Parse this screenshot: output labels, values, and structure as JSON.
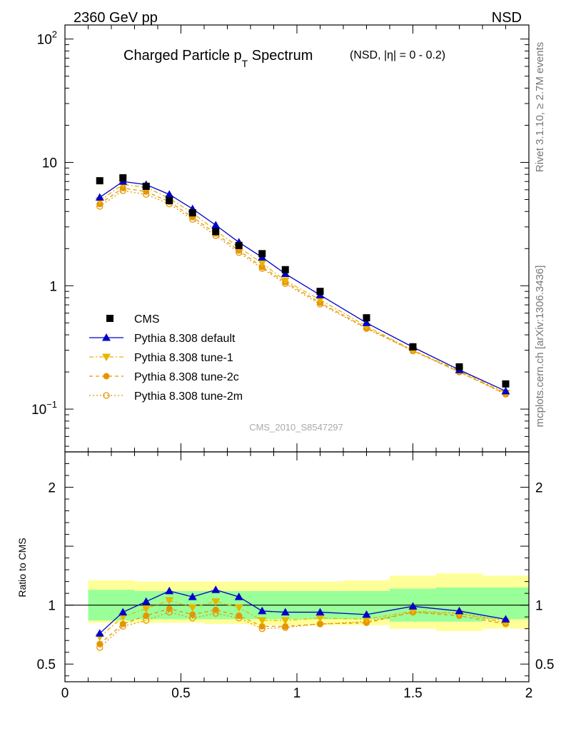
{
  "header": {
    "left": "2360 GeV pp",
    "right": "NSD",
    "side_rivet": "Rivet 3.1.10, ≥ 2.7M events",
    "side_mcplots": "mcplots.cern.ch [arXiv:1306.3436]"
  },
  "chart_data": {
    "type": "scatter",
    "title": "Charged Particle p",
    "title_sub": "T",
    "title_tail": " Spectrum",
    "title_cut": "(NSD, |η| =   0 - 0.2)",
    "watermark": "CMS_2010_S8547297",
    "top_panel": {
      "yscale": "log",
      "ylim": [
        0.045,
        130
      ],
      "ytick_labels": [
        {
          "value": 100,
          "base": "10",
          "exp": "2"
        },
        {
          "value": 10,
          "base": "10",
          "exp": ""
        },
        {
          "value": 1,
          "base": "1",
          "exp": ""
        },
        {
          "value": 0.1,
          "base": "10",
          "exp": "−1"
        }
      ]
    },
    "bottom_panel": {
      "ylabel": "Ratio to CMS",
      "ylim": [
        0.35,
        2.3
      ],
      "yticks": [
        0.5,
        1,
        2
      ],
      "ytick_labels": [
        "0.5",
        "1",
        "2"
      ],
      "reference_line": 1
    },
    "xlim": [
      0,
      2
    ],
    "xticks": [
      0,
      0.5,
      1,
      1.5,
      2
    ],
    "xtick_labels": [
      "0",
      "0.5",
      "1",
      "1.5",
      "2"
    ],
    "x": [
      0.15,
      0.25,
      0.35,
      0.45,
      0.55,
      0.65,
      0.75,
      0.85,
      0.95,
      1.1,
      1.3,
      1.5,
      1.7,
      1.9
    ],
    "x_edges": [
      0.1,
      0.2,
      0.3,
      0.4,
      0.5,
      0.6,
      0.7,
      0.8,
      0.9,
      1.0,
      1.2,
      1.4,
      1.6,
      1.8,
      2.0
    ],
    "data": {
      "name": "CMS",
      "values": [
        7.1,
        7.5,
        6.4,
        4.9,
        3.9,
        2.75,
        2.12,
        1.82,
        1.35,
        0.9,
        0.55,
        0.32,
        0.22,
        0.16
      ],
      "band_inner": [
        [
          0.87,
          1.13
        ],
        [
          0.87,
          1.13
        ],
        [
          0.88,
          1.12
        ],
        [
          0.88,
          1.12
        ],
        [
          0.88,
          1.12
        ],
        [
          0.88,
          1.12
        ],
        [
          0.88,
          1.12
        ],
        [
          0.88,
          1.12
        ],
        [
          0.88,
          1.12
        ],
        [
          0.88,
          1.12
        ],
        [
          0.88,
          1.12
        ],
        [
          0.86,
          1.14
        ],
        [
          0.86,
          1.15
        ],
        [
          0.88,
          1.15
        ]
      ],
      "band_outer": [
        [
          0.85,
          1.21
        ],
        [
          0.85,
          1.21
        ],
        [
          0.85,
          1.2
        ],
        [
          0.85,
          1.2
        ],
        [
          0.85,
          1.2
        ],
        [
          0.84,
          1.2
        ],
        [
          0.84,
          1.2
        ],
        [
          0.83,
          1.2
        ],
        [
          0.83,
          1.2
        ],
        [
          0.83,
          1.2
        ],
        [
          0.83,
          1.21
        ],
        [
          0.8,
          1.25
        ],
        [
          0.78,
          1.27
        ],
        [
          0.8,
          1.25
        ]
      ]
    },
    "series": [
      {
        "name": "Pythia 8.308 default",
        "color": "#0000cc",
        "marker": "triangle-up",
        "dash": "",
        "values": [
          5.2,
          7.0,
          6.6,
          5.5,
          4.2,
          3.1,
          2.25,
          1.7,
          1.25,
          0.84,
          0.5,
          0.318,
          0.208,
          0.14
        ],
        "ratio": [
          0.76,
          0.94,
          1.03,
          1.12,
          1.07,
          1.13,
          1.07,
          0.95,
          0.94,
          0.94,
          0.92,
          0.99,
          0.95,
          0.88
        ]
      },
      {
        "name": "Pythia 8.308 tune-1",
        "color": "#e8b400",
        "marker": "triangle-down",
        "dash": "6,3,2,3",
        "values": [
          4.9,
          6.6,
          6.3,
          5.1,
          3.9,
          2.8,
          2.05,
          1.52,
          1.1,
          0.77,
          0.47,
          0.3,
          0.205,
          0.135
        ],
        "ratio": [
          0.73,
          0.9,
          0.97,
          1.04,
          0.98,
          1.03,
          0.98,
          0.87,
          0.87,
          0.89,
          0.88,
          0.95,
          0.93,
          0.85
        ]
      },
      {
        "name": "Pythia 8.308 tune-2c",
        "color": "#e69500",
        "marker": "circle-filled",
        "dash": "5,4",
        "values": [
          4.6,
          6.2,
          5.8,
          4.8,
          3.6,
          2.65,
          1.93,
          1.42,
          1.07,
          0.73,
          0.455,
          0.298,
          0.2,
          0.133
        ],
        "ratio": [
          0.67,
          0.84,
          0.91,
          0.97,
          0.92,
          0.96,
          0.91,
          0.82,
          0.82,
          0.84,
          0.85,
          0.94,
          0.91,
          0.84
        ]
      },
      {
        "name": "Pythia 8.308 tune-2m",
        "color": "#e69500",
        "marker": "circle-open",
        "dash": "2,3",
        "values": [
          4.4,
          5.9,
          5.5,
          4.6,
          3.45,
          2.55,
          1.86,
          1.38,
          1.04,
          0.71,
          0.45,
          0.296,
          0.2,
          0.132
        ],
        "ratio": [
          0.64,
          0.82,
          0.87,
          0.94,
          0.89,
          0.93,
          0.89,
          0.8,
          0.81,
          0.84,
          0.86,
          0.94,
          0.93,
          0.87
        ]
      }
    ],
    "legend_position": "bottom-left"
  }
}
